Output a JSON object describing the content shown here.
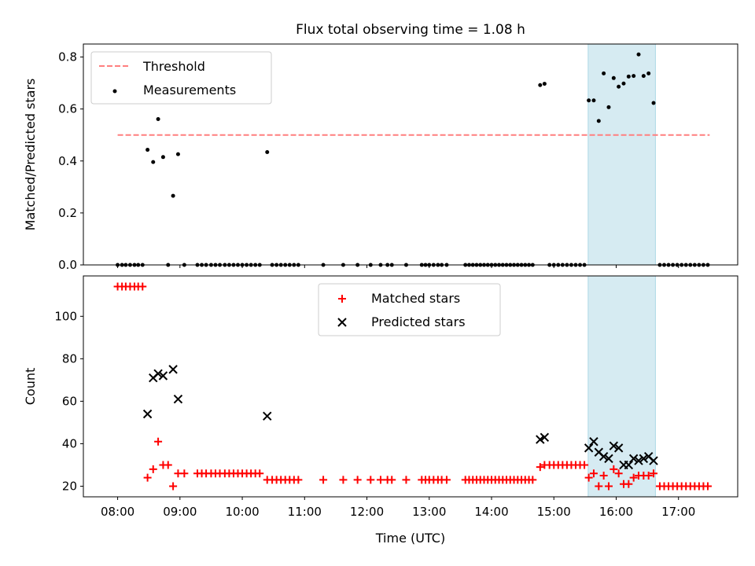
{
  "title": "Flux total observing time = 1.08 h",
  "colors": {
    "threshold": "#ff7f7f",
    "measurement": "#000000",
    "matched": "#ff0000",
    "predicted": "#000000",
    "highlight_fill": "#add8e6"
  },
  "chart_data": [
    {
      "type": "scatter",
      "panel": "top",
      "ylabel": "Matched/Predicted stars",
      "xlim": [
        7.45,
        17.95
      ],
      "ylim": [
        0,
        0.85
      ],
      "yticks": [
        0.0,
        0.2,
        0.4,
        0.6,
        0.8
      ],
      "ytick_labels": [
        "0.0",
        "0.2",
        "0.4",
        "0.6",
        "0.8"
      ],
      "highlight_span": [
        15.55,
        16.63
      ],
      "threshold": {
        "label": "Threshold",
        "value": 0.5,
        "x_range": [
          8.0,
          17.5
        ]
      },
      "legend": {
        "placement": "upper-left",
        "entries": [
          "Threshold",
          "Measurements"
        ]
      },
      "series": [
        {
          "name": "Measurements",
          "marker": "dot",
          "points": [
            [
              8.0,
              0
            ],
            [
              8.07,
              0
            ],
            [
              8.13,
              0
            ],
            [
              8.2,
              0
            ],
            [
              8.27,
              0
            ],
            [
              8.33,
              0
            ],
            [
              8.4,
              0
            ],
            [
              8.48,
              0.443
            ],
            [
              8.57,
              0.396
            ],
            [
              8.65,
              0.561
            ],
            [
              8.73,
              0.415
            ],
            [
              8.81,
              0
            ],
            [
              8.89,
              0.266
            ],
            [
              8.97,
              0.426
            ],
            [
              9.07,
              0
            ],
            [
              9.28,
              0
            ],
            [
              9.35,
              0
            ],
            [
              9.42,
              0
            ],
            [
              9.5,
              0
            ],
            [
              9.57,
              0
            ],
            [
              9.64,
              0
            ],
            [
              9.72,
              0
            ],
            [
              9.79,
              0
            ],
            [
              9.86,
              0
            ],
            [
              9.93,
              0
            ],
            [
              10.0,
              0
            ],
            [
              10.07,
              0
            ],
            [
              10.14,
              0
            ],
            [
              10.21,
              0
            ],
            [
              10.28,
              0
            ],
            [
              10.4,
              0.434
            ],
            [
              10.48,
              0
            ],
            [
              10.55,
              0
            ],
            [
              10.62,
              0
            ],
            [
              10.69,
              0
            ],
            [
              10.76,
              0
            ],
            [
              10.83,
              0
            ],
            [
              10.9,
              0
            ],
            [
              11.3,
              0
            ],
            [
              11.62,
              0
            ],
            [
              11.85,
              0
            ],
            [
              12.06,
              0
            ],
            [
              12.22,
              0
            ],
            [
              12.33,
              0
            ],
            [
              12.4,
              0
            ],
            [
              12.63,
              0
            ],
            [
              12.88,
              0
            ],
            [
              12.94,
              0
            ],
            [
              13.0,
              0
            ],
            [
              13.07,
              0
            ],
            [
              13.14,
              0
            ],
            [
              13.2,
              0
            ],
            [
              13.28,
              0
            ],
            [
              13.58,
              0
            ],
            [
              13.64,
              0
            ],
            [
              13.7,
              0
            ],
            [
              13.76,
              0
            ],
            [
              13.82,
              0
            ],
            [
              13.88,
              0
            ],
            [
              13.94,
              0
            ],
            [
              14.0,
              0
            ],
            [
              14.06,
              0
            ],
            [
              14.12,
              0
            ],
            [
              14.18,
              0
            ],
            [
              14.24,
              0
            ],
            [
              14.3,
              0
            ],
            [
              14.36,
              0
            ],
            [
              14.42,
              0
            ],
            [
              14.48,
              0
            ],
            [
              14.54,
              0
            ],
            [
              14.6,
              0
            ],
            [
              14.66,
              0
            ],
            [
              14.78,
              0.692
            ],
            [
              14.85,
              0.697
            ],
            [
              14.93,
              0
            ],
            [
              15.0,
              0
            ],
            [
              15.07,
              0
            ],
            [
              15.14,
              0
            ],
            [
              15.21,
              0
            ],
            [
              15.28,
              0
            ],
            [
              15.35,
              0
            ],
            [
              15.42,
              0
            ],
            [
              15.49,
              0
            ],
            [
              15.56,
              0.633
            ],
            [
              15.64,
              0.633
            ],
            [
              15.72,
              0.554
            ],
            [
              15.8,
              0.737
            ],
            [
              15.88,
              0.607
            ],
            [
              15.96,
              0.719
            ],
            [
              16.04,
              0.686
            ],
            [
              16.12,
              0.698
            ],
            [
              16.2,
              0.725
            ],
            [
              16.28,
              0.727
            ],
            [
              16.36,
              0.81
            ],
            [
              16.44,
              0.727
            ],
            [
              16.52,
              0.737
            ],
            [
              16.6,
              0.623
            ],
            [
              16.7,
              0
            ],
            [
              16.77,
              0
            ],
            [
              16.84,
              0
            ],
            [
              16.91,
              0
            ],
            [
              16.98,
              0
            ],
            [
              17.05,
              0
            ],
            [
              17.12,
              0
            ],
            [
              17.19,
              0
            ],
            [
              17.26,
              0
            ],
            [
              17.33,
              0
            ],
            [
              17.4,
              0
            ],
            [
              17.47,
              0
            ]
          ]
        }
      ]
    },
    {
      "type": "scatter",
      "panel": "bottom",
      "xlabel": "Time (UTC)",
      "ylabel": "Count",
      "xlim": [
        7.45,
        17.95
      ],
      "ylim": [
        15,
        119
      ],
      "xticks": [
        8,
        9,
        10,
        11,
        12,
        13,
        14,
        15,
        16,
        17
      ],
      "xtick_labels": [
        "08:00",
        "09:00",
        "10:00",
        "11:00",
        "12:00",
        "13:00",
        "14:00",
        "15:00",
        "16:00",
        "17:00"
      ],
      "yticks": [
        20,
        40,
        60,
        80,
        100
      ],
      "ytick_labels": [
        "20",
        "40",
        "60",
        "80",
        "100"
      ],
      "highlight_span": [
        15.55,
        16.63
      ],
      "legend": {
        "placement": "upper-center",
        "entries": [
          "Matched stars",
          "Predicted stars"
        ]
      },
      "series": [
        {
          "name": "Matched stars",
          "marker": "plus",
          "points": [
            [
              8.0,
              114
            ],
            [
              8.07,
              114
            ],
            [
              8.13,
              114
            ],
            [
              8.2,
              114
            ],
            [
              8.27,
              114
            ],
            [
              8.33,
              114
            ],
            [
              8.4,
              114
            ],
            [
              8.48,
              24
            ],
            [
              8.57,
              28
            ],
            [
              8.65,
              41
            ],
            [
              8.73,
              30
            ],
            [
              8.81,
              30
            ],
            [
              8.89,
              20
            ],
            [
              8.97,
              26
            ],
            [
              9.07,
              26
            ],
            [
              9.28,
              26
            ],
            [
              9.35,
              26
            ],
            [
              9.42,
              26
            ],
            [
              9.5,
              26
            ],
            [
              9.57,
              26
            ],
            [
              9.64,
              26
            ],
            [
              9.72,
              26
            ],
            [
              9.79,
              26
            ],
            [
              9.86,
              26
            ],
            [
              9.93,
              26
            ],
            [
              10.0,
              26
            ],
            [
              10.07,
              26
            ],
            [
              10.14,
              26
            ],
            [
              10.21,
              26
            ],
            [
              10.28,
              26
            ],
            [
              10.4,
              23
            ],
            [
              10.48,
              23
            ],
            [
              10.55,
              23
            ],
            [
              10.62,
              23
            ],
            [
              10.69,
              23
            ],
            [
              10.76,
              23
            ],
            [
              10.83,
              23
            ],
            [
              10.9,
              23
            ],
            [
              11.3,
              23
            ],
            [
              11.62,
              23
            ],
            [
              11.85,
              23
            ],
            [
              12.06,
              23
            ],
            [
              12.22,
              23
            ],
            [
              12.33,
              23
            ],
            [
              12.4,
              23
            ],
            [
              12.63,
              23
            ],
            [
              12.88,
              23
            ],
            [
              12.94,
              23
            ],
            [
              13.0,
              23
            ],
            [
              13.07,
              23
            ],
            [
              13.14,
              23
            ],
            [
              13.2,
              23
            ],
            [
              13.28,
              23
            ],
            [
              13.58,
              23
            ],
            [
              13.64,
              23
            ],
            [
              13.7,
              23
            ],
            [
              13.76,
              23
            ],
            [
              13.82,
              23
            ],
            [
              13.88,
              23
            ],
            [
              13.94,
              23
            ],
            [
              14.0,
              23
            ],
            [
              14.06,
              23
            ],
            [
              14.12,
              23
            ],
            [
              14.18,
              23
            ],
            [
              14.24,
              23
            ],
            [
              14.3,
              23
            ],
            [
              14.36,
              23
            ],
            [
              14.42,
              23
            ],
            [
              14.48,
              23
            ],
            [
              14.54,
              23
            ],
            [
              14.6,
              23
            ],
            [
              14.66,
              23
            ],
            [
              14.78,
              29
            ],
            [
              14.85,
              30
            ],
            [
              14.93,
              30
            ],
            [
              15.0,
              30
            ],
            [
              15.07,
              30
            ],
            [
              15.14,
              30
            ],
            [
              15.21,
              30
            ],
            [
              15.28,
              30
            ],
            [
              15.35,
              30
            ],
            [
              15.42,
              30
            ],
            [
              15.49,
              30
            ],
            [
              15.56,
              24
            ],
            [
              15.64,
              26
            ],
            [
              15.72,
              20
            ],
            [
              15.8,
              25
            ],
            [
              15.88,
              20
            ],
            [
              15.96,
              28
            ],
            [
              16.04,
              26
            ],
            [
              16.12,
              21
            ],
            [
              16.2,
              21
            ],
            [
              16.28,
              24
            ],
            [
              16.36,
              25
            ],
            [
              16.44,
              25
            ],
            [
              16.52,
              25
            ],
            [
              16.6,
              26
            ],
            [
              16.7,
              20
            ],
            [
              16.77,
              20
            ],
            [
              16.84,
              20
            ],
            [
              16.91,
              20
            ],
            [
              16.98,
              20
            ],
            [
              17.05,
              20
            ],
            [
              17.12,
              20
            ],
            [
              17.19,
              20
            ],
            [
              17.26,
              20
            ],
            [
              17.33,
              20
            ],
            [
              17.4,
              20
            ],
            [
              17.47,
              20
            ]
          ]
        },
        {
          "name": "Predicted stars",
          "marker": "x",
          "points": [
            [
              8.48,
              54
            ],
            [
              8.57,
              71
            ],
            [
              8.65,
              73
            ],
            [
              8.73,
              72
            ],
            [
              8.89,
              75
            ],
            [
              8.97,
              61
            ],
            [
              10.4,
              53
            ],
            [
              14.78,
              42
            ],
            [
              14.85,
              43
            ],
            [
              15.56,
              38
            ],
            [
              15.64,
              41
            ],
            [
              15.72,
              36
            ],
            [
              15.8,
              34
            ],
            [
              15.88,
              33
            ],
            [
              15.96,
              39
            ],
            [
              16.04,
              38
            ],
            [
              16.12,
              30
            ],
            [
              16.2,
              30
            ],
            [
              16.28,
              33
            ],
            [
              16.36,
              32
            ],
            [
              16.44,
              33
            ],
            [
              16.52,
              34
            ],
            [
              16.6,
              32
            ]
          ]
        }
      ]
    }
  ]
}
